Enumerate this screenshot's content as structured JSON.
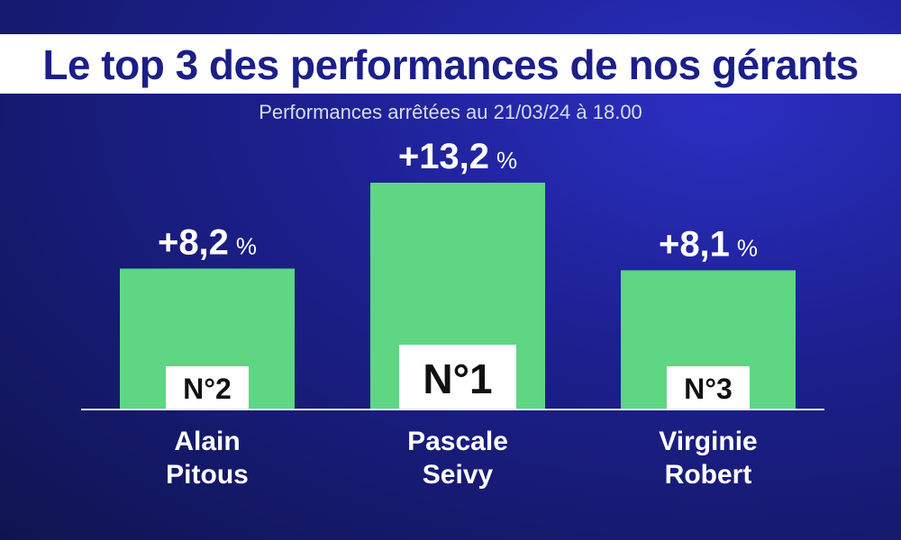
{
  "header": {
    "title": "Le top 3 des performances de nos gérants",
    "subtitle": "Performances arrêtées au 21/03/24 à 18.00"
  },
  "colors": {
    "bar": "#5ed684",
    "background": "#1d2090",
    "title_band": "#ffffff",
    "title_text": "#1b1f87"
  },
  "chart_data": {
    "type": "bar",
    "categories": [
      "Alain Pitous",
      "Pascale Seivy",
      "Virginie Robert"
    ],
    "values": [
      8.2,
      13.2,
      8.1
    ],
    "ylim": [
      0,
      13.2
    ],
    "grid": false,
    "bars": [
      {
        "first_name": "Alain",
        "last_name": "Pitous",
        "value": 8.2,
        "value_label": "+8,2",
        "unit": "%",
        "rank": "N°2"
      },
      {
        "first_name": "Pascale",
        "last_name": "Seivy",
        "value": 13.2,
        "value_label": "+13,2",
        "unit": "%",
        "rank": "N°1"
      },
      {
        "first_name": "Virginie",
        "last_name": "Robert",
        "value": 8.1,
        "value_label": "+8,1",
        "unit": "%",
        "rank": "N°3"
      }
    ]
  }
}
